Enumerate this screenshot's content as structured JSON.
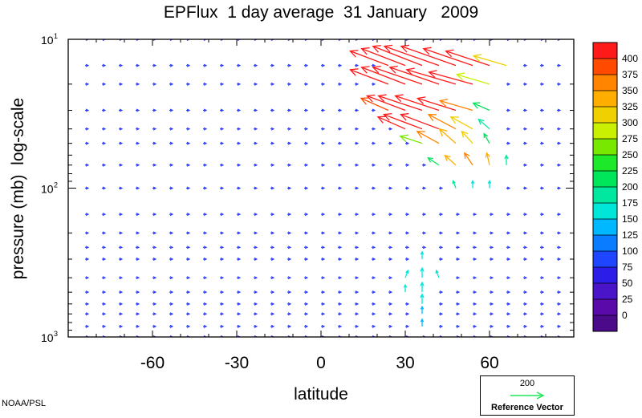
{
  "chart_data": {
    "type": "vector",
    "title": "EPFlux  1 day average  31 January   2009",
    "xlabel": "latitude",
    "ylabel": "pressure (mb)  log-scale",
    "xlim": [
      -90,
      90
    ],
    "ylim": [
      1000,
      10
    ],
    "y_scale": "log",
    "xticks": [
      {
        "value": -60,
        "label": "-60"
      },
      {
        "value": -30,
        "label": "-30"
      },
      {
        "value": 0,
        "label": "0"
      },
      {
        "value": 30,
        "label": "30"
      },
      {
        "value": 60,
        "label": "60"
      }
    ],
    "yticks": [
      {
        "value": 10,
        "base": "10",
        "exp": "1"
      },
      {
        "value": 100,
        "base": "10",
        "exp": "2"
      },
      {
        "value": 1000,
        "base": "10",
        "exp": "3"
      }
    ],
    "colorbar": {
      "labels": [
        "400",
        "375",
        "350",
        "325",
        "300",
        "275",
        "250",
        "225",
        "200",
        "175",
        "150",
        "125",
        "100",
        "75",
        "50",
        "25",
        "0"
      ],
      "colors": [
        "#ff1a1a",
        "#ff4a00",
        "#ff8400",
        "#ffae00",
        "#f0d000",
        "#c8f000",
        "#78e800",
        "#1ee82a",
        "#00e65a",
        "#00e8a0",
        "#00e6d8",
        "#00b8ff",
        "#0a7cff",
        "#1e46ff",
        "#2c1ee8",
        "#4a14c8",
        "#5a0aa8",
        "#4a0a8a"
      ]
    },
    "reference_vector": {
      "value": "200",
      "label": "Reference Vector",
      "color": "#1ee85a"
    },
    "vectors": {
      "description_of_encoding": "",
      "latitudes": [
        -84,
        -78,
        -72,
        -66,
        -60,
        -54,
        -48,
        -42,
        -36,
        -30,
        -24,
        -18,
        -12,
        -6,
        0,
        6,
        12,
        18,
        24,
        30,
        36,
        42,
        48,
        54,
        60,
        66,
        72,
        78,
        84
      ],
      "pressures": [
        1000,
        850,
        700,
        600,
        500,
        400,
        300,
        250,
        200,
        150,
        100,
        70,
        50,
        40,
        30,
        20,
        15,
        10
      ]
    },
    "strong_vectors": [
      {
        "lat": 24,
        "p": 15,
        "u": -14,
        "v": 6,
        "mag": 400
      },
      {
        "lat": 30,
        "p": 15,
        "u": -16,
        "v": 7,
        "mag": 400
      },
      {
        "lat": 36,
        "p": 15,
        "u": -18,
        "v": 8,
        "mag": 400
      },
      {
        "lat": 42,
        "p": 15,
        "u": -20,
        "v": 8,
        "mag": 400
      },
      {
        "lat": 48,
        "p": 15,
        "u": -20,
        "v": 8,
        "mag": 400
      },
      {
        "lat": 54,
        "p": 15,
        "u": -18,
        "v": 7,
        "mag": 400
      },
      {
        "lat": 60,
        "p": 15,
        "u": -16,
        "v": 6,
        "mag": 400
      },
      {
        "lat": 66,
        "p": 15,
        "u": -12,
        "v": 4,
        "mag": 300
      },
      {
        "lat": 24,
        "p": 20,
        "u": -14,
        "v": 6,
        "mag": 400
      },
      {
        "lat": 30,
        "p": 20,
        "u": -16,
        "v": 7,
        "mag": 400
      },
      {
        "lat": 36,
        "p": 20,
        "u": -18,
        "v": 7,
        "mag": 400
      },
      {
        "lat": 42,
        "p": 20,
        "u": -18,
        "v": 7,
        "mag": 400
      },
      {
        "lat": 48,
        "p": 20,
        "u": -18,
        "v": 6,
        "mag": 400
      },
      {
        "lat": 54,
        "p": 20,
        "u": -16,
        "v": 5,
        "mag": 400
      },
      {
        "lat": 60,
        "p": 20,
        "u": -12,
        "v": 4,
        "mag": 280
      },
      {
        "lat": 24,
        "p": 30,
        "u": -10,
        "v": 5,
        "mag": 380
      },
      {
        "lat": 30,
        "p": 30,
        "u": -14,
        "v": 6,
        "mag": 400
      },
      {
        "lat": 36,
        "p": 30,
        "u": -16,
        "v": 6,
        "mag": 400
      },
      {
        "lat": 42,
        "p": 30,
        "u": -16,
        "v": 6,
        "mag": 400
      },
      {
        "lat": 48,
        "p": 30,
        "u": -14,
        "v": 5,
        "mag": 400
      },
      {
        "lat": 54,
        "p": 30,
        "u": -12,
        "v": 4,
        "mag": 340
      },
      {
        "lat": 60,
        "p": 30,
        "u": -6,
        "v": 3,
        "mag": 200
      },
      {
        "lat": 30,
        "p": 40,
        "u": -10,
        "v": 5,
        "mag": 400
      },
      {
        "lat": 36,
        "p": 40,
        "u": -14,
        "v": 6,
        "mag": 400
      },
      {
        "lat": 42,
        "p": 40,
        "u": -14,
        "v": 6,
        "mag": 400
      },
      {
        "lat": 48,
        "p": 40,
        "u": -10,
        "v": 6,
        "mag": 360
      },
      {
        "lat": 54,
        "p": 40,
        "u": -8,
        "v": 5,
        "mag": 300
      },
      {
        "lat": 60,
        "p": 40,
        "u": -4,
        "v": 4,
        "mag": 180
      },
      {
        "lat": 36,
        "p": 50,
        "u": -8,
        "v": 3,
        "mag": 260
      },
      {
        "lat": 42,
        "p": 50,
        "u": -8,
        "v": 5,
        "mag": 340
      },
      {
        "lat": 48,
        "p": 50,
        "u": -6,
        "v": 6,
        "mag": 320
      },
      {
        "lat": 54,
        "p": 50,
        "u": -4,
        "v": 5,
        "mag": 300
      },
      {
        "lat": 60,
        "p": 50,
        "u": -2,
        "v": 4,
        "mag": 200
      },
      {
        "lat": 42,
        "p": 70,
        "u": -4,
        "v": 3,
        "mag": 200
      },
      {
        "lat": 48,
        "p": 70,
        "u": -4,
        "v": 4,
        "mag": 320
      },
      {
        "lat": 54,
        "p": 70,
        "u": -3,
        "v": 5,
        "mag": 340
      },
      {
        "lat": 60,
        "p": 70,
        "u": -1,
        "v": 5,
        "mag": 330
      },
      {
        "lat": 66,
        "p": 70,
        "u": 0,
        "v": 4,
        "mag": 180
      },
      {
        "lat": 48,
        "p": 100,
        "u": -1,
        "v": 3,
        "mag": 170
      },
      {
        "lat": 54,
        "p": 100,
        "u": 0,
        "v": 3,
        "mag": 160
      },
      {
        "lat": 60,
        "p": 100,
        "u": 0,
        "v": 3,
        "mag": 150
      },
      {
        "lat": 36,
        "p": 300,
        "u": 0,
        "v": 3,
        "mag": 140
      },
      {
        "lat": 30,
        "p": 400,
        "u": 1,
        "v": 3,
        "mag": 150
      },
      {
        "lat": 36,
        "p": 400,
        "u": 0,
        "v": 4,
        "mag": 160
      },
      {
        "lat": 42,
        "p": 400,
        "u": -1,
        "v": 3,
        "mag": 150
      },
      {
        "lat": 30,
        "p": 500,
        "u": 0,
        "v": 3,
        "mag": 140
      },
      {
        "lat": 36,
        "p": 500,
        "u": 0,
        "v": 4,
        "mag": 150
      },
      {
        "lat": 36,
        "p": 600,
        "u": 0,
        "v": 4,
        "mag": 140
      },
      {
        "lat": 36,
        "p": 700,
        "u": 0,
        "v": 3,
        "mag": 130
      },
      {
        "lat": 36,
        "p": 850,
        "u": 0,
        "v": 3,
        "mag": 130
      }
    ]
  },
  "footer": {
    "credit": "NOAA/PSL"
  }
}
